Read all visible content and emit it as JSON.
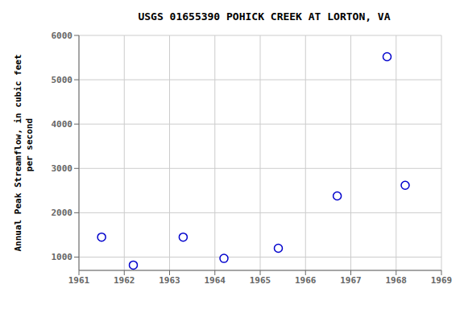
{
  "chart_data": {
    "type": "scatter",
    "title": "USGS 01655390 POHICK CREEK AT LORTON, VA",
    "ylabel": "Annual Peak Streamflow, in cubic feet\n   per second",
    "x": [
      1961.5,
      1962.2,
      1963.3,
      1964.2,
      1965.4,
      1966.7,
      1967.8,
      1968.2
    ],
    "values": [
      1450,
      820,
      1450,
      970,
      1200,
      2380,
      5520,
      2620
    ],
    "xlim": [
      1961,
      1969
    ],
    "xticks": [
      1961,
      1962,
      1963,
      1964,
      1965,
      1966,
      1967,
      1968,
      1969
    ],
    "ylim": [
      700,
      6000
    ],
    "yticks": [
      1000,
      2000,
      3000,
      4000,
      5000,
      6000
    ],
    "color": "#0000cc",
    "marker": "o",
    "grid": true
  }
}
